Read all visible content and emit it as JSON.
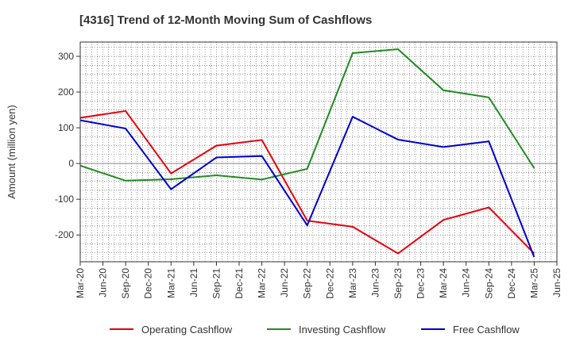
{
  "chart_data": {
    "type": "line",
    "title": "[4316]  Trend of 12-Month Moving Sum of Cashflows",
    "ylabel": "Amount (million yen)",
    "xlabel": "",
    "ylim": [
      -275,
      340
    ],
    "yticks": [
      300,
      200,
      100,
      0,
      -100,
      -200
    ],
    "categories": [
      "Mar-20",
      "Jun-20",
      "Sep-20",
      "Dec-20",
      "Mar-21",
      "Jun-21",
      "Sep-21",
      "Dec-21",
      "Mar-22",
      "Jun-22",
      "Sep-22",
      "Dec-22",
      "Mar-23",
      "Jun-23",
      "Sep-23",
      "Dec-23",
      "Mar-24",
      "Jun-24",
      "Sep-24",
      "Dec-24",
      "Mar-25",
      "Jun-25"
    ],
    "grid": true,
    "legend_position": "bottom",
    "series": [
      {
        "name": "Operating Cashflow",
        "color": "#e8000b",
        "values": [
          128,
          null,
          147,
          null,
          -28,
          null,
          50,
          null,
          66,
          null,
          -160,
          null,
          -177,
          null,
          -252,
          null,
          -158,
          null,
          -123,
          null,
          -252,
          null
        ]
      },
      {
        "name": "Investing Cashflow",
        "color": "#228b22",
        "values": [
          -6,
          null,
          -48,
          null,
          -44,
          null,
          -33,
          null,
          -45,
          null,
          -15,
          null,
          309,
          null,
          320,
          null,
          205,
          null,
          185,
          null,
          -13,
          null
        ]
      },
      {
        "name": "Free Cashflow",
        "color": "#0000cd",
        "values": [
          121,
          null,
          98,
          null,
          -72,
          null,
          17,
          null,
          21,
          null,
          -173,
          null,
          131,
          null,
          67,
          null,
          46,
          null,
          62,
          null,
          -262,
          null
        ]
      }
    ]
  }
}
